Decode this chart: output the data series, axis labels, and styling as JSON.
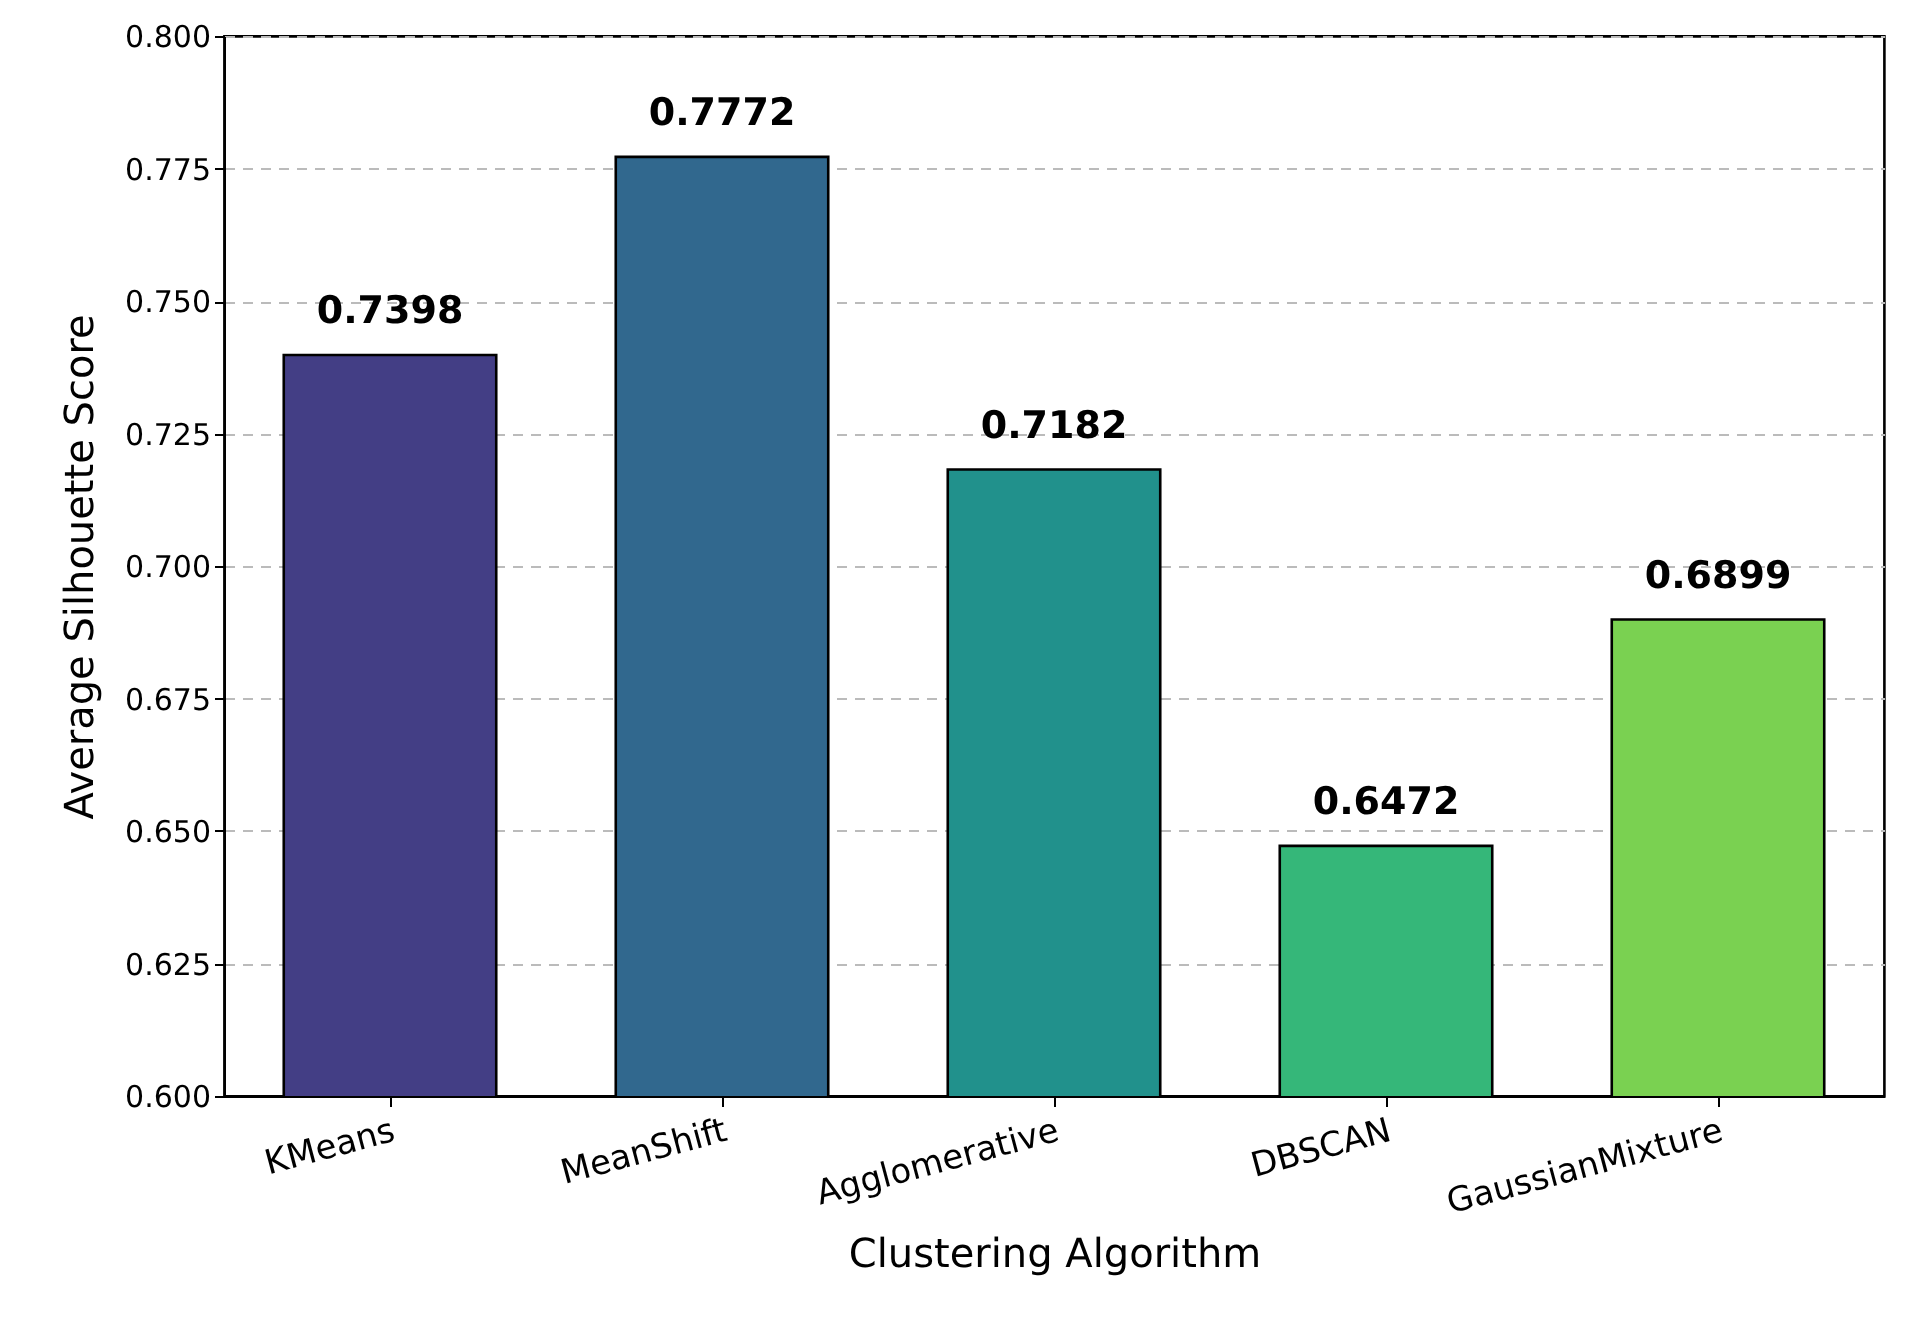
{
  "chart_data": {
    "type": "bar",
    "xlabel": "Clustering Algorithm",
    "ylabel": "Average Silhouette Score",
    "categories": [
      "KMeans",
      "MeanShift",
      "Agglomerative",
      "DBSCAN",
      "GaussianMixture"
    ],
    "values": [
      0.7398,
      0.7772,
      0.7182,
      0.6472,
      0.6899
    ],
    "colors": [
      "#433e85",
      "#31688e",
      "#21918c",
      "#35b779",
      "#7ad151"
    ],
    "ylim": [
      0.6,
      0.8
    ],
    "yticks": [
      {
        "value": 0.6,
        "label": "0.600"
      },
      {
        "value": 0.625,
        "label": "0.625"
      },
      {
        "value": 0.65,
        "label": "0.650"
      },
      {
        "value": 0.675,
        "label": "0.675"
      },
      {
        "value": 0.7,
        "label": "0.700"
      },
      {
        "value": 0.725,
        "label": "0.725"
      },
      {
        "value": 0.75,
        "label": "0.750"
      },
      {
        "value": 0.775,
        "label": "0.775"
      },
      {
        "value": 0.8,
        "label": "0.800"
      }
    ],
    "grid": "y",
    "data_labels": true
  }
}
